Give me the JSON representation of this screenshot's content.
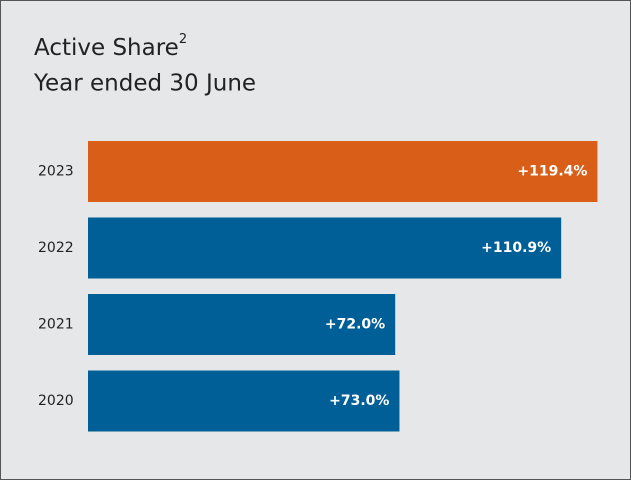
{
  "chart_data": {
    "type": "barh",
    "title": "Active Share",
    "title_note": "2",
    "subtitle": "Year ended 30 June",
    "categories": [
      "2023",
      "2022",
      "2021",
      "2020"
    ],
    "values": [
      119.4,
      110.9,
      72.0,
      73.0
    ],
    "value_labels": [
      "+119.4%",
      "+110.9%",
      "+72.0%",
      "+73.0%"
    ],
    "colors": [
      "#d95f18",
      "#005f96",
      "#005f96",
      "#005f96"
    ],
    "xlim": [
      0,
      120
    ],
    "grid": false
  }
}
